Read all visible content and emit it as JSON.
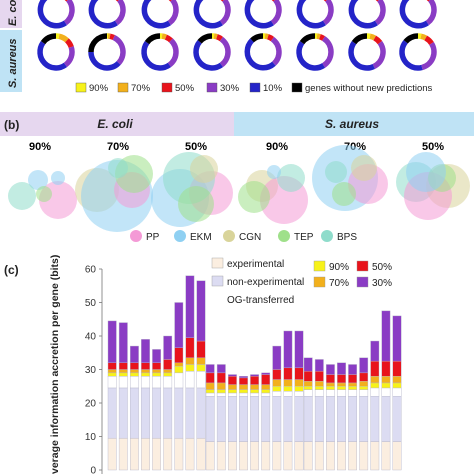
{
  "panel_a": {
    "side_labels": [
      "E. co",
      "S. aureus"
    ],
    "legend": [
      {
        "label": "90%",
        "color": "#f7f21a"
      },
      {
        "label": "70%",
        "color": "#f2b01c"
      },
      {
        "label": "50%",
        "color": "#e8141c"
      },
      {
        "label": "30%",
        "color": "#8a3cc4"
      },
      {
        "label": "10%",
        "color": "#2424c8"
      },
      {
        "label": "genes without new predictions",
        "color": "#000000"
      }
    ],
    "rings": [
      [
        [
          0.04,
          0.04,
          0.06,
          0.26,
          0.5,
          0.1
        ],
        [
          0.04,
          0.04,
          0.06,
          0.26,
          0.5,
          0.1
        ],
        [
          0.04,
          0.04,
          0.06,
          0.26,
          0.5,
          0.1
        ],
        [
          0.04,
          0.04,
          0.06,
          0.26,
          0.5,
          0.1
        ],
        [
          0.04,
          0.04,
          0.06,
          0.26,
          0.5,
          0.1
        ],
        [
          0.04,
          0.04,
          0.06,
          0.26,
          0.5,
          0.1
        ],
        [
          0.04,
          0.04,
          0.06,
          0.26,
          0.5,
          0.1
        ],
        [
          0.04,
          0.04,
          0.06,
          0.26,
          0.5,
          0.1
        ]
      ],
      [
        [
          0.03,
          0.09,
          0.08,
          0.2,
          0.45,
          0.15
        ],
        [
          0.01,
          0.02,
          0.04,
          0.3,
          0.38,
          0.25
        ],
        [
          0.02,
          0.04,
          0.06,
          0.28,
          0.45,
          0.15
        ],
        [
          0.02,
          0.03,
          0.05,
          0.3,
          0.46,
          0.14
        ],
        [
          0.02,
          0.03,
          0.05,
          0.28,
          0.5,
          0.12
        ],
        [
          0.02,
          0.03,
          0.04,
          0.32,
          0.44,
          0.15
        ],
        [
          0.03,
          0.05,
          0.07,
          0.28,
          0.42,
          0.15
        ],
        [
          0.03,
          0.05,
          0.08,
          0.3,
          0.4,
          0.14
        ]
      ]
    ]
  },
  "panel_b": {
    "tag": "(b)",
    "group_labels": [
      "E. coli",
      "S. aureus"
    ],
    "col_labels": [
      "90%",
      "70%",
      "50%",
      "90%",
      "70%",
      "50%"
    ],
    "legend": [
      {
        "label": "PP",
        "color": "#f49ad6"
      },
      {
        "label": "EKM",
        "color": "#8fd0f2"
      },
      {
        "label": "CGN",
        "color": "#d9d49a"
      },
      {
        "label": "TEP",
        "color": "#9fe08a"
      },
      {
        "label": "BPS",
        "color": "#8fdccb"
      }
    ]
  },
  "panel_c": {
    "tag": "(c)",
    "legend": [
      {
        "label": "experimental",
        "color": "#fbeee0"
      },
      {
        "label": "non-experimental",
        "color": "#dcdcf2"
      },
      {
        "label": "OG-transferred",
        "color": "#ffffff"
      },
      {
        "label": "90%",
        "color": "#f7f21a"
      },
      {
        "label": "70%",
        "color": "#f2b01c"
      },
      {
        "label": "50%",
        "color": "#e8141c"
      },
      {
        "label": "30%",
        "color": "#8a3cc4"
      }
    ]
  },
  "chart_data": {
    "type": "bar",
    "stacked": true,
    "ylabel": "verage information accretion per gene (bits)",
    "ylim": [
      0,
      60
    ],
    "yticks": [
      "0",
      "10",
      "20",
      "30",
      "40",
      "50",
      "60"
    ],
    "grid": false,
    "groups": [
      {
        "bars": [
          [
            9.5,
            15,
            3.5,
            1,
            1,
            2,
            12.5
          ],
          [
            9.5,
            15,
            3.5,
            1,
            1,
            2,
            12
          ],
          [
            9.5,
            15,
            3.5,
            1,
            1,
            2,
            5
          ],
          [
            9.5,
            15,
            3.5,
            1,
            1,
            2,
            7
          ],
          [
            9.5,
            15,
            3.5,
            1,
            1,
            2,
            4
          ],
          [
            9.5,
            15,
            3.5,
            1,
            1,
            3,
            7
          ],
          [
            9.5,
            15,
            4.5,
            2,
            1,
            4.5,
            13.5
          ],
          [
            9.5,
            15,
            5,
            2,
            2,
            6,
            18.5
          ],
          [
            9.5,
            15,
            5,
            2,
            2,
            5,
            18
          ]
        ]
      },
      {
        "bars": [
          [
            8.5,
            13.5,
            1,
            1,
            2,
            3,
            2.5
          ],
          [
            8.5,
            13.5,
            1,
            1,
            2,
            3,
            2.5
          ],
          [
            8.5,
            13.5,
            1,
            1,
            1.5,
            2.5,
            0.5
          ],
          [
            8.5,
            13.5,
            1,
            1,
            1.5,
            2,
            0.5
          ],
          [
            8.5,
            13.5,
            1,
            1,
            1.5,
            2.5,
            0.5
          ],
          [
            8.5,
            13.5,
            1,
            1,
            1.5,
            3,
            0.5
          ],
          [
            8.5,
            13.5,
            1.5,
            1.5,
            2,
            3,
            7
          ],
          [
            8.5,
            13.5,
            1.5,
            1.5,
            2,
            3.5,
            11
          ],
          [
            8.5,
            13.5,
            1.5,
            1.5,
            2,
            3.5,
            11
          ]
        ]
      },
      {
        "bars": [
          [
            8.5,
            13.5,
            2,
            1,
            1.5,
            3,
            4
          ],
          [
            8.5,
            13.5,
            2,
            1,
            1.5,
            3,
            3.5
          ],
          [
            8.5,
            13.5,
            2,
            1,
            1,
            2.5,
            3
          ],
          [
            8.5,
            13.5,
            2,
            1,
            1,
            2.5,
            3.5
          ],
          [
            8.5,
            13.5,
            2,
            1,
            1,
            2.5,
            3
          ],
          [
            8.5,
            13.5,
            2,
            1,
            1.5,
            2.5,
            4.5
          ],
          [
            8.5,
            13.5,
            2.5,
            1.5,
            2,
            4.5,
            6
          ],
          [
            8.5,
            13.5,
            2.5,
            1.5,
            2,
            4.5,
            15
          ],
          [
            8.5,
            13.5,
            2.5,
            1.5,
            2,
            4.5,
            13.5
          ]
        ]
      }
    ],
    "series_order": [
      "experimental",
      "non-experimental",
      "OG-transferred",
      "90%",
      "70%",
      "50%",
      "30%"
    ]
  }
}
